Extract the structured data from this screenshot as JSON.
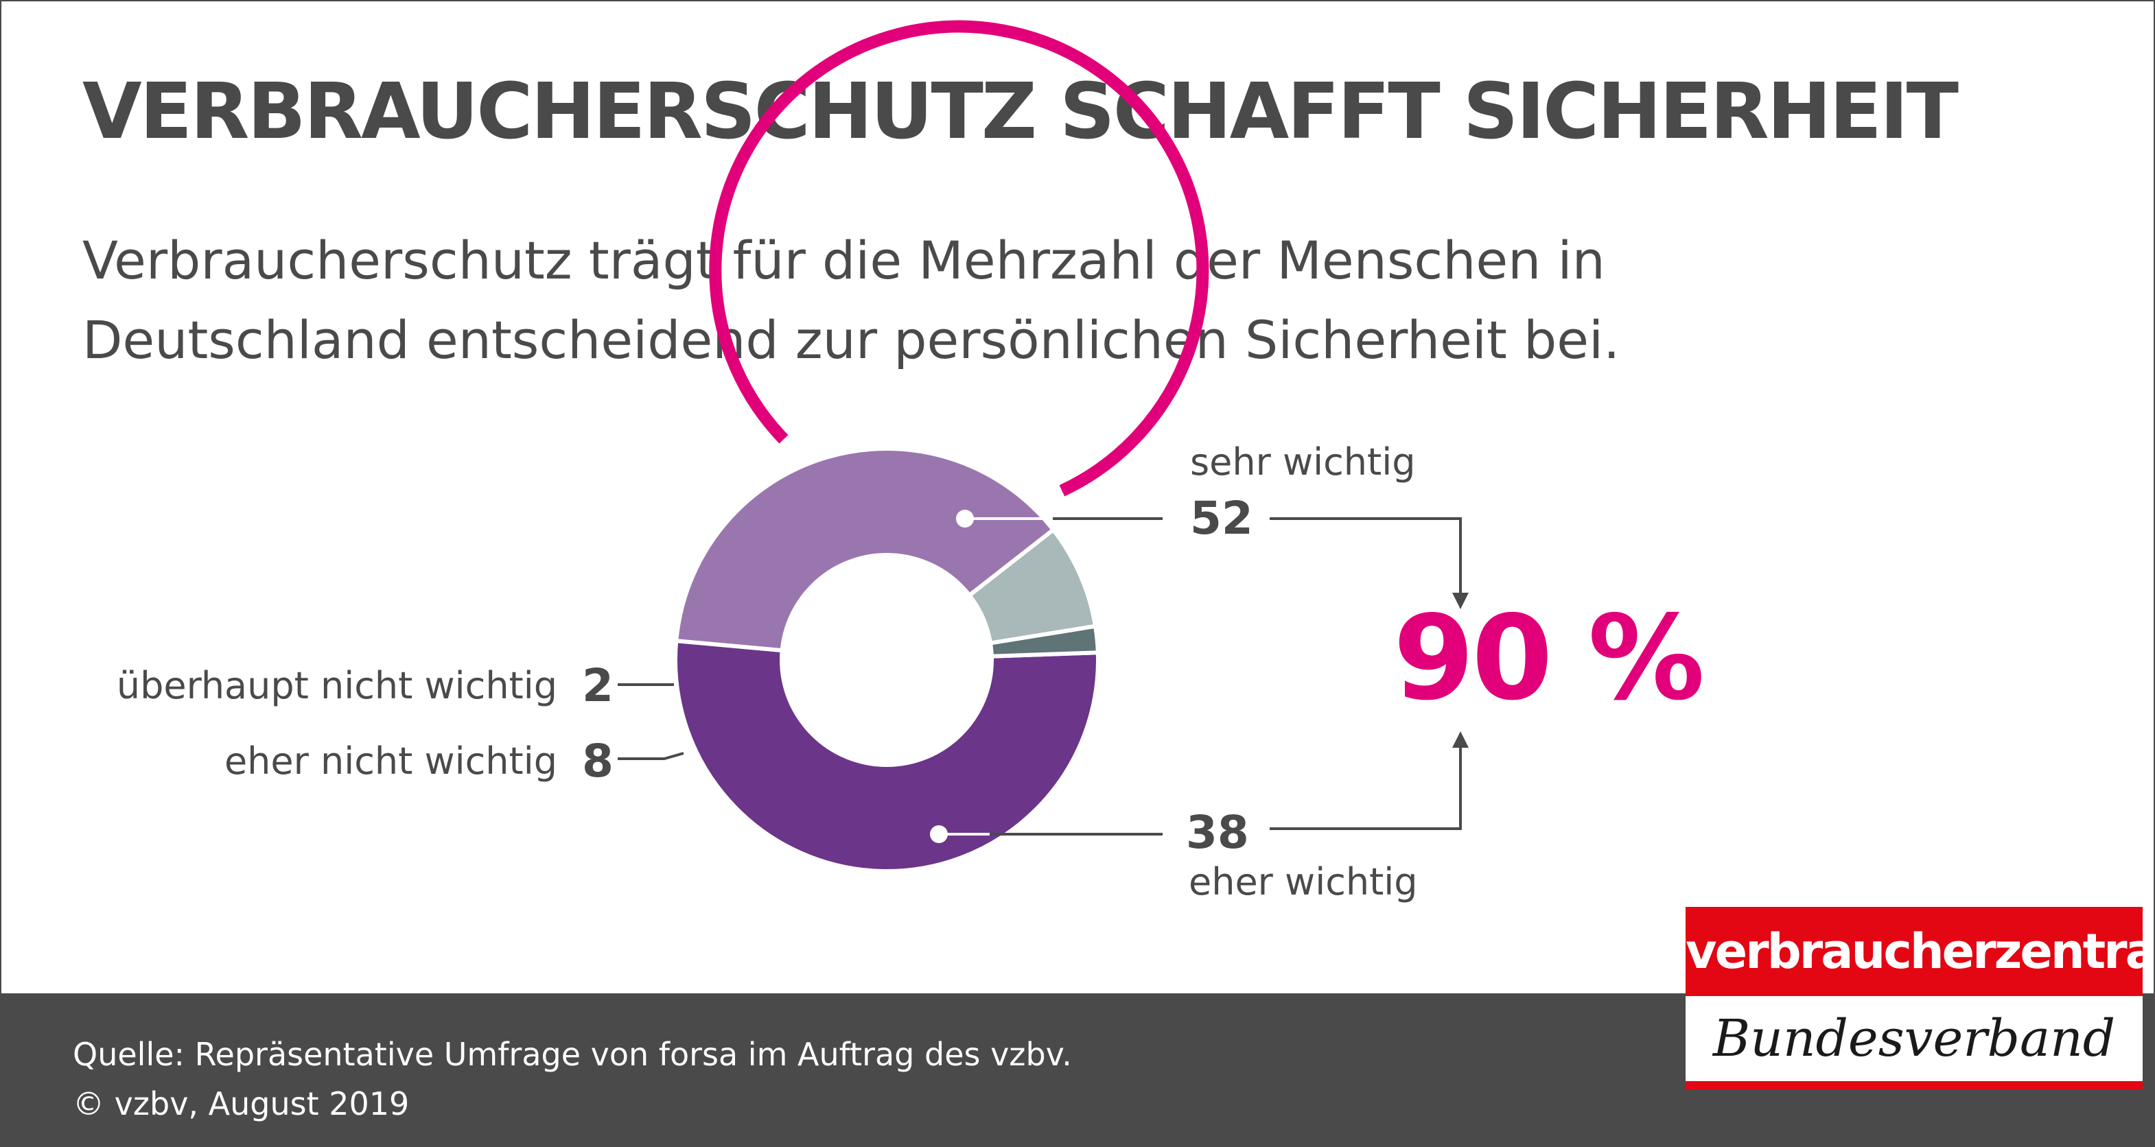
{
  "title": "VERBRAUCHERSCHUTZ SCHAFFT SICHERHEIT",
  "subtitle": {
    "line1": "Verbraucherschutz trägt für die Mehrzahl der Menschen in",
    "line2": "Deutschland entscheidend zur persönlichen Sicherheit bei."
  },
  "chart_data": {
    "type": "pie",
    "categories": [
      "sehr wichtig",
      "eher wichtig",
      "eher nicht wichtig",
      "überhaupt nicht wichtig"
    ],
    "values": [
      52,
      38,
      8,
      2
    ],
    "colors": [
      "#6b3589",
      "#9a76ae",
      "#a9b8b8",
      "#5e7477"
    ],
    "highlight_color": "#e2007a",
    "highlight_sum_label": "90 %",
    "highlight_categories": [
      "sehr wichtig",
      "eher wichtig"
    ]
  },
  "labels": {
    "very_important": "sehr wichtig",
    "very_important_value": "52",
    "rather_important": "eher wichtig",
    "rather_important_value": "38",
    "rather_not_important": "eher nicht wichtig",
    "rather_not_important_value": "8",
    "not_important_at_all": "überhaupt nicht wichtig",
    "not_important_at_all_value": "2",
    "total": "90 %"
  },
  "footer": {
    "source": "Quelle: Repräsentative Umfrage von forsa im Auftrag des vzbv.",
    "copyright": "© vzbv, August 2019"
  },
  "logo": {
    "top": "verbraucherzentrale",
    "bottom": "Bundesverband"
  }
}
